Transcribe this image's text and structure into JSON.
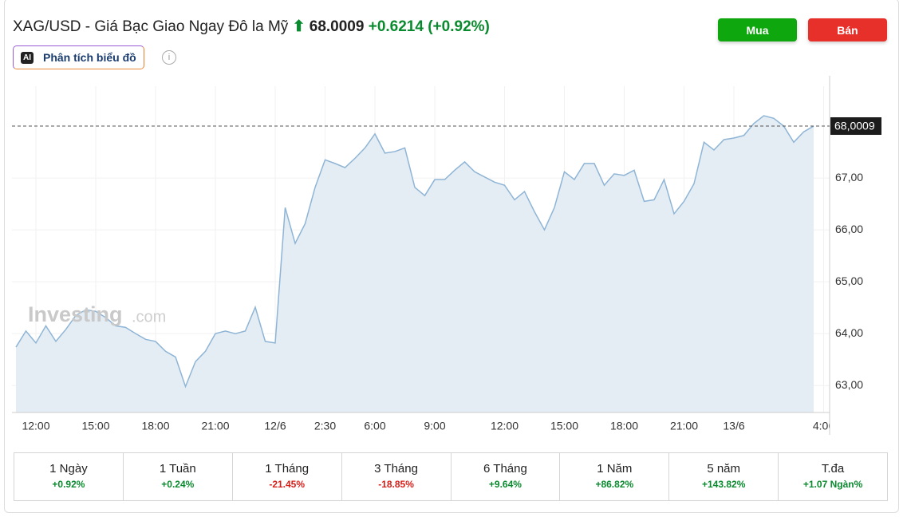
{
  "header": {
    "title": "XAG/USD - Giá Bạc Giao Ngay Đô la Mỹ",
    "price": "68.0009",
    "change": "+0.6214",
    "change_pct": "(+0.92%)",
    "ai_badge": "AI",
    "ai_button": "Phân tích biểu đồ",
    "info_icon": "i",
    "buy": "Mua",
    "sell": "Bán"
  },
  "watermark": {
    "brand": "Investing",
    "suffix": ".com"
  },
  "chart_data": {
    "type": "area",
    "line_color": "#8fb5d6",
    "fill_color": "#e4ecf4",
    "categories": [
      null,
      null,
      "12:00",
      null,
      null,
      null,
      null,
      null,
      "15:00",
      null,
      null,
      null,
      null,
      null,
      "18:00",
      null,
      null,
      null,
      null,
      null,
      "21:00",
      null,
      null,
      null,
      null,
      null,
      "12/6",
      null,
      null,
      null,
      null,
      "2:30",
      null,
      null,
      null,
      null,
      "6:00",
      null,
      null,
      null,
      null,
      null,
      "9:00",
      null,
      null,
      null,
      null,
      null,
      null,
      "12:00",
      null,
      null,
      null,
      null,
      null,
      "15:00",
      null,
      null,
      null,
      null,
      null,
      "18:00",
      null,
      null,
      null,
      null,
      null,
      "21:00",
      null,
      null,
      null,
      null,
      "13/6",
      null,
      null,
      null,
      null,
      null,
      null,
      null,
      null,
      "4:00"
    ],
    "values": [
      63.74,
      64.05,
      63.82,
      64.15,
      63.85,
      64.08,
      64.35,
      64.46,
      64.43,
      64.31,
      64.15,
      64.12,
      64.0,
      63.89,
      63.85,
      63.66,
      63.55,
      62.98,
      63.46,
      63.66,
      64.0,
      64.05,
      64.0,
      64.05,
      64.51,
      63.85,
      63.82,
      66.43,
      65.74,
      66.12,
      66.82,
      67.35,
      67.28,
      67.2,
      67.38,
      67.58,
      67.85,
      67.48,
      67.51,
      67.58,
      66.82,
      66.66,
      66.97,
      66.97,
      67.15,
      67.31,
      67.12,
      67.02,
      66.92,
      66.86,
      66.58,
      66.74,
      66.35,
      66.0,
      66.43,
      67.12,
      66.97,
      67.28,
      67.28,
      66.86,
      67.08,
      67.05,
      67.15,
      66.55,
      66.58,
      66.97,
      66.31,
      66.55,
      66.89,
      67.69,
      67.54,
      67.74,
      67.77,
      67.82,
      68.05,
      68.2,
      68.15,
      68.0,
      67.69,
      67.89,
      68.0,
      null
    ],
    "ylim": [
      62.48,
      68.77
    ],
    "yticks": [
      {
        "value": 63,
        "label": "63,00"
      },
      {
        "value": 64,
        "label": "64,00"
      },
      {
        "value": 65,
        "label": "65,00"
      },
      {
        "value": 66,
        "label": "66,00"
      },
      {
        "value": 67,
        "label": "67,00"
      }
    ],
    "last_value": {
      "value": 68.0009,
      "label": "68,0009"
    },
    "grid": true
  },
  "performance": [
    {
      "period": "1 Ngày",
      "change": "+0.92%"
    },
    {
      "period": "1 Tuần",
      "change": "+0.24%"
    },
    {
      "period": "1 Tháng",
      "change": "-21.45%"
    },
    {
      "period": "3 Tháng",
      "change": "-18.85%"
    },
    {
      "period": "6 Tháng",
      "change": "+9.64%"
    },
    {
      "period": "1 Năm",
      "change": "+86.82%"
    },
    {
      "period": "5 năm",
      "change": "+143.82%"
    },
    {
      "period": "T.đa",
      "change": "+1.07 Ngàn%"
    }
  ]
}
